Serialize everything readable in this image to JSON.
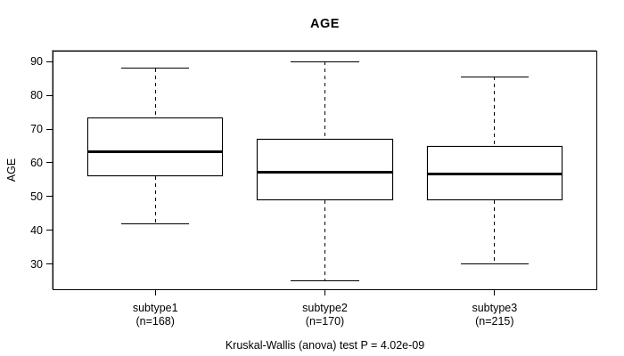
{
  "chart_data": {
    "type": "boxplot",
    "title": "AGE",
    "ylabel": "AGE",
    "xlabel": "",
    "footer": "Kruskal-Wallis (anova) test P = 4.02e-09",
    "yticks": [
      30,
      40,
      50,
      60,
      70,
      80,
      90
    ],
    "ylim": [
      22.5,
      93
    ],
    "grid": false,
    "legend": "none",
    "groups": [
      {
        "label": "subtype1",
        "sublabel": "(n=168)",
        "n": 168,
        "whisker_low": 42,
        "q1": 56,
        "median": 63.5,
        "q3": 73.5,
        "whisker_high": 88
      },
      {
        "label": "subtype2",
        "sublabel": "(n=170)",
        "n": 170,
        "whisker_low": 25,
        "q1": 49,
        "median": 57.5,
        "q3": 67,
        "whisker_high": 90
      },
      {
        "label": "subtype3",
        "sublabel": "(n=215)",
        "n": 215,
        "whisker_low": 30,
        "q1": 49,
        "median": 57,
        "q3": 65,
        "whisker_high": 85.5
      }
    ],
    "colors": {
      "line": "#000000",
      "background": "#ffffff",
      "border_shadow": "#9a9a9a"
    }
  }
}
